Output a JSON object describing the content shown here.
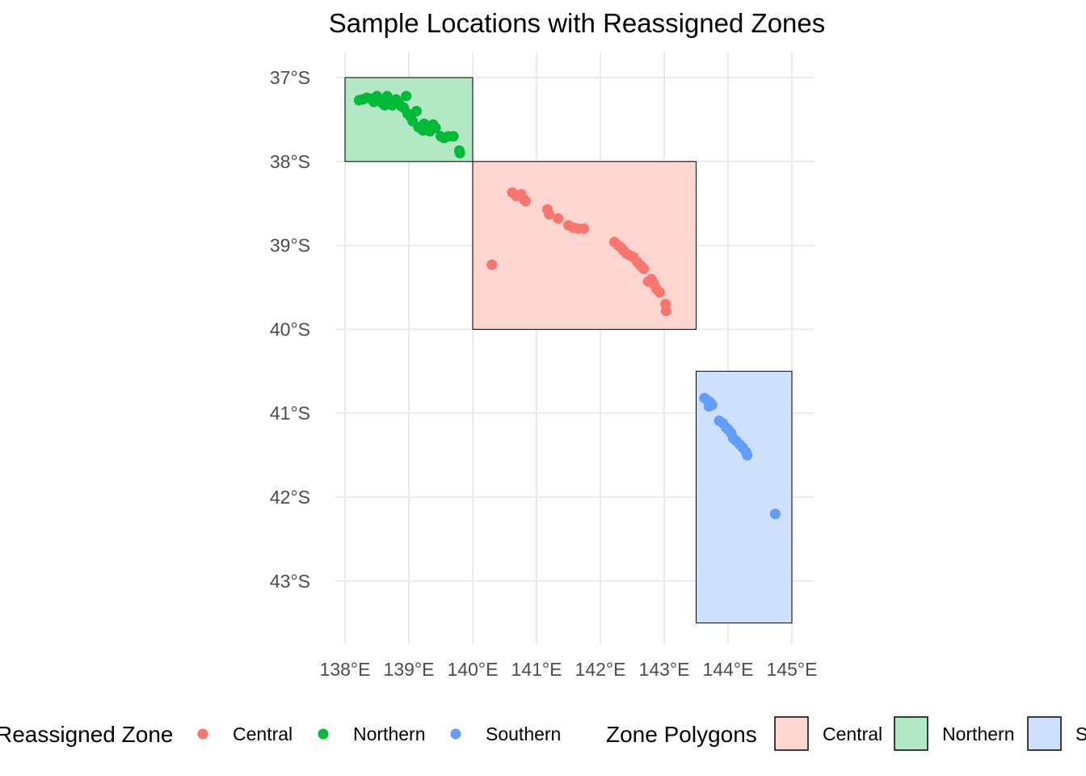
{
  "chart_data": {
    "type": "scatter",
    "title": "Sample Locations with Reassigned Zones",
    "xlabel": "",
    "ylabel": "",
    "xlim": [
      137.85,
      145.35
    ],
    "ylim": [
      -43.75,
      -36.7
    ],
    "x_ticks": [
      {
        "value": 138,
        "label": "138°E"
      },
      {
        "value": 139,
        "label": "139°E"
      },
      {
        "value": 140,
        "label": "140°E"
      },
      {
        "value": 141,
        "label": "141°E"
      },
      {
        "value": 142,
        "label": "142°E"
      },
      {
        "value": 143,
        "label": "143°E"
      },
      {
        "value": 144,
        "label": "144°E"
      },
      {
        "value": 145,
        "label": "145°E"
      }
    ],
    "y_ticks": [
      {
        "value": -37,
        "label": "37°S"
      },
      {
        "value": -38,
        "label": "38°S"
      },
      {
        "value": -39,
        "label": "39°S"
      },
      {
        "value": -40,
        "label": "40°S"
      },
      {
        "value": -41,
        "label": "41°S"
      },
      {
        "value": -42,
        "label": "42°S"
      },
      {
        "value": -43,
        "label": "43°S"
      }
    ],
    "grid": true,
    "legend_position": "bottom",
    "polygons": [
      {
        "name": "Northern",
        "xmin": 138.0,
        "xmax": 140.0,
        "ymin": -38.0,
        "ymax": -37.0,
        "fill": "#b3e8c4"
      },
      {
        "name": "Central",
        "xmin": 140.0,
        "xmax": 143.5,
        "ymin": -40.0,
        "ymax": -38.0,
        "fill": "#ffd5d2"
      },
      {
        "name": "Southern",
        "xmin": 143.5,
        "xmax": 145.0,
        "ymin": -43.5,
        "ymax": -40.5,
        "fill": "#cfe0fe"
      }
    ],
    "series": [
      {
        "name": "Central",
        "color": "#f8766d",
        "points": [
          [
            140.62,
            -38.37
          ],
          [
            140.68,
            -38.41
          ],
          [
            140.76,
            -38.39
          ],
          [
            140.8,
            -38.45
          ],
          [
            140.83,
            -38.47
          ],
          [
            141.17,
            -38.57
          ],
          [
            141.2,
            -38.63
          ],
          [
            141.34,
            -38.68
          ],
          [
            141.5,
            -38.76
          ],
          [
            141.58,
            -38.79
          ],
          [
            141.65,
            -38.8
          ],
          [
            141.74,
            -38.8
          ],
          [
            140.3,
            -39.23
          ],
          [
            142.22,
            -38.96
          ],
          [
            142.28,
            -39.0
          ],
          [
            142.33,
            -39.03
          ],
          [
            142.36,
            -39.06
          ],
          [
            142.41,
            -39.1
          ],
          [
            142.46,
            -39.12
          ],
          [
            142.52,
            -39.14
          ],
          [
            142.58,
            -39.2
          ],
          [
            142.63,
            -39.24
          ],
          [
            142.68,
            -39.28
          ],
          [
            142.75,
            -39.43
          ],
          [
            142.8,
            -39.4
          ],
          [
            142.84,
            -39.46
          ],
          [
            142.88,
            -39.52
          ],
          [
            142.93,
            -39.56
          ],
          [
            143.02,
            -39.7
          ],
          [
            143.03,
            -39.78
          ]
        ]
      },
      {
        "name": "Northern",
        "color": "#00ba38",
        "points": [
          [
            138.22,
            -37.27
          ],
          [
            138.28,
            -37.26
          ],
          [
            138.34,
            -37.24
          ],
          [
            138.4,
            -37.25
          ],
          [
            138.45,
            -37.29
          ],
          [
            138.5,
            -37.22
          ],
          [
            138.54,
            -37.27
          ],
          [
            138.58,
            -37.3
          ],
          [
            138.62,
            -37.33
          ],
          [
            138.66,
            -37.22
          ],
          [
            138.7,
            -37.28
          ],
          [
            138.74,
            -37.33
          ],
          [
            138.8,
            -37.26
          ],
          [
            138.84,
            -37.3
          ],
          [
            138.88,
            -37.34
          ],
          [
            138.92,
            -37.36
          ],
          [
            138.96,
            -37.22
          ],
          [
            138.98,
            -37.43
          ],
          [
            139.03,
            -37.47
          ],
          [
            139.06,
            -37.52
          ],
          [
            139.12,
            -37.4
          ],
          [
            139.15,
            -37.59
          ],
          [
            139.22,
            -37.63
          ],
          [
            139.24,
            -37.55
          ],
          [
            139.33,
            -37.64
          ],
          [
            139.38,
            -37.56
          ],
          [
            139.42,
            -37.6
          ],
          [
            139.5,
            -37.7
          ],
          [
            139.55,
            -37.72
          ],
          [
            139.62,
            -37.7
          ],
          [
            139.7,
            -37.7
          ],
          [
            139.79,
            -37.87
          ],
          [
            139.8,
            -37.9
          ]
        ]
      },
      {
        "name": "Southern",
        "color": "#619cff",
        "points": [
          [
            143.63,
            -40.82
          ],
          [
            143.68,
            -40.85
          ],
          [
            143.72,
            -40.87
          ],
          [
            143.75,
            -40.9
          ],
          [
            143.7,
            -40.92
          ],
          [
            143.86,
            -41.09
          ],
          [
            143.92,
            -41.12
          ],
          [
            143.97,
            -41.17
          ],
          [
            144.01,
            -41.2
          ],
          [
            144.05,
            -41.24
          ],
          [
            144.08,
            -41.3
          ],
          [
            144.13,
            -41.33
          ],
          [
            144.18,
            -41.37
          ],
          [
            144.23,
            -41.41
          ],
          [
            144.28,
            -41.46
          ],
          [
            144.3,
            -41.5
          ],
          [
            144.74,
            -42.2
          ]
        ]
      }
    ],
    "legend_points": {
      "title": "Reassigned Zone",
      "entries": [
        {
          "label": "Central",
          "color": "#f8766d"
        },
        {
          "label": "Northern",
          "color": "#00ba38"
        },
        {
          "label": "Southern",
          "color": "#619cff"
        }
      ]
    },
    "legend_polygons": {
      "title": "Zone Polygons",
      "entries": [
        {
          "label": "Central",
          "fill": "#ffd5d2"
        },
        {
          "label": "Northern",
          "fill": "#b3e8c4"
        },
        {
          "label": "Southern",
          "fill": "#cfe0fe"
        }
      ]
    }
  }
}
